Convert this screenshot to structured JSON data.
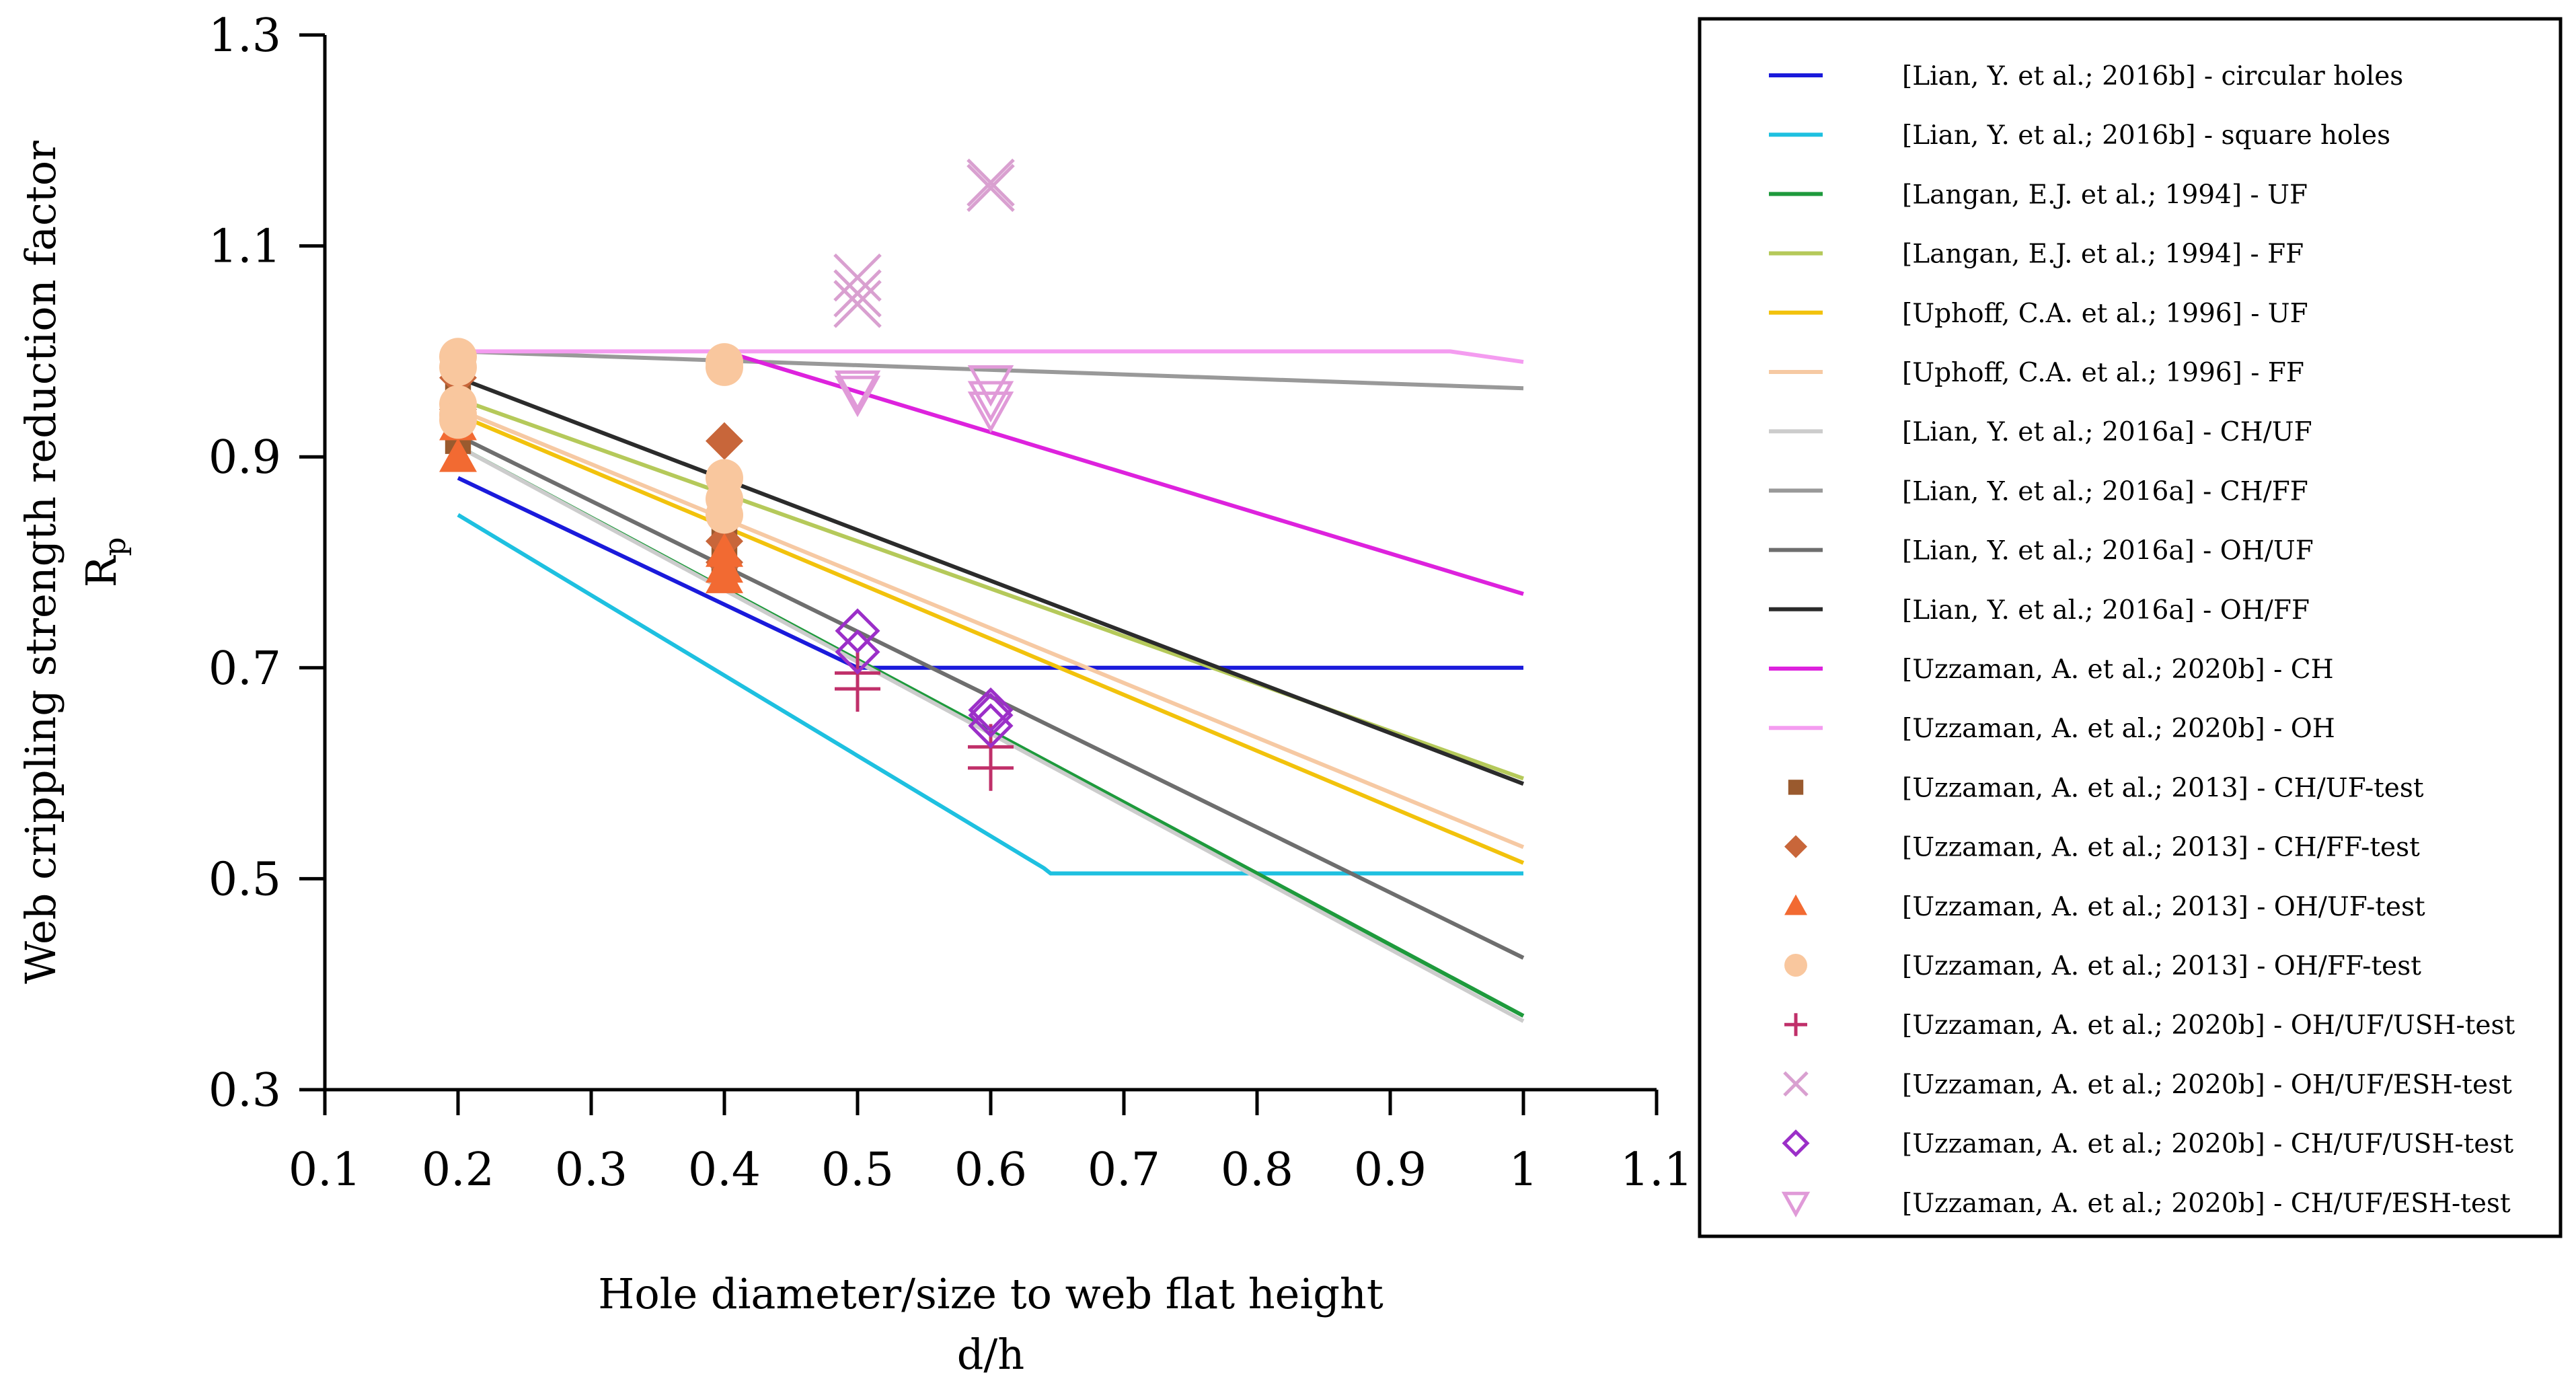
{
  "chart_data": {
    "type": "line",
    "xlabel_line1": "Hole diameter/size to web flat height",
    "xlabel_line2": "d/h",
    "ylabel_line1": "Web crippling strength reduction factor",
    "ylabel_line2_main": "R",
    "ylabel_line2_sub": "p",
    "xlim": [
      0.1,
      1.1
    ],
    "ylim": [
      0.3,
      1.3
    ],
    "xticks": [
      0.1,
      0.2,
      0.3,
      0.4,
      0.5,
      0.6,
      0.7,
      0.8,
      0.9,
      1.0,
      1.1
    ],
    "xtick_labels": [
      "0.1",
      "0.2",
      "0.3",
      "0.4",
      "0.5",
      "0.6",
      "0.7",
      "0.8",
      "0.9",
      "1",
      "1.1"
    ],
    "yticks": [
      0.3,
      0.5,
      0.7,
      0.9,
      1.1,
      1.3
    ],
    "ytick_labels": [
      "0.3",
      "0.5",
      "0.7",
      "0.9",
      "1.1",
      "1.3"
    ],
    "grid": false,
    "legend_position": "right",
    "lines": [
      {
        "name": "[Lian, Y. et al.; 2016b] - circular holes",
        "color": "#1a1adb",
        "x": [
          0.2,
          0.5,
          1.0
        ],
        "y": [
          0.88,
          0.7,
          0.7
        ]
      },
      {
        "name": "[Lian, Y. et al.; 2016b] - square holes",
        "color": "#1ec0e0",
        "x": [
          0.2,
          0.64,
          0.645,
          1.0
        ],
        "y": [
          0.845,
          0.51,
          0.505,
          0.505
        ]
      },
      {
        "name": "[Langan, E.J. et al.; 1994] - UF",
        "color": "#1e9a3c",
        "x": [
          0.2,
          1.0
        ],
        "y": [
          0.91,
          0.37
        ]
      },
      {
        "name": "[Langan, E.J. et al.; 1994] - FF",
        "color": "#b5c95a",
        "x": [
          0.2,
          1.0
        ],
        "y": [
          0.955,
          0.595
        ]
      },
      {
        "name": "[Uphoff, C.A. et al.; 1996] - UF",
        "color": "#f2c20c",
        "x": [
          0.2,
          1.0
        ],
        "y": [
          0.94,
          0.515
        ]
      },
      {
        "name": "[Uphoff, C.A. et al.; 1996] - FF",
        "color": "#f6c9a3",
        "x": [
          0.2,
          1.0
        ],
        "y": [
          0.945,
          0.53
        ]
      },
      {
        "name": "[Lian, Y. et al.; 2016a] - CH/UF",
        "color": "#cccccc",
        "x": [
          0.2,
          1.0
        ],
        "y": [
          0.91,
          0.365
        ]
      },
      {
        "name": "[Lian, Y. et al.; 2016a] - CH/FF",
        "color": "#999999",
        "x": [
          0.2,
          1.0
        ],
        "y": [
          1.0,
          0.965
        ]
      },
      {
        "name": "[Lian, Y. et al.; 2016a] - OH/UF",
        "color": "#6e6e6e",
        "x": [
          0.2,
          1.0
        ],
        "y": [
          0.92,
          0.425
        ]
      },
      {
        "name": "[Lian, Y. et al.; 2016a] - OH/FF",
        "color": "#2b2b2b",
        "x": [
          0.2,
          1.0
        ],
        "y": [
          0.975,
          0.59
        ]
      },
      {
        "name": "[Uzzaman, A. et al.; 2020b] - CH",
        "color": "#dd22dd",
        "x": [
          0.4,
          1.0
        ],
        "y": [
          1.0,
          0.77
        ]
      },
      {
        "name": "[Uzzaman, A. et al.; 2020b] - OH",
        "color": "#f49cf0",
        "x": [
          0.2,
          0.945,
          1.0
        ],
        "y": [
          1.0,
          1.0,
          0.99
        ]
      }
    ],
    "scatter": [
      {
        "name": "[Uzzaman, A. et al.; 2013] - CH/UF-test",
        "marker": "square",
        "color": "#9a5a2e",
        "x": [
          0.2,
          0.2,
          0.2,
          0.4,
          0.4,
          0.4
        ],
        "y": [
          0.965,
          0.935,
          0.915,
          0.83,
          0.805,
          0.79
        ]
      },
      {
        "name": "[Uzzaman, A. et al.; 2013] - CH/FF-test",
        "marker": "diamond",
        "color": "#c8663a",
        "x": [
          0.2,
          0.2,
          0.4,
          0.4,
          0.4
        ],
        "y": [
          0.975,
          0.945,
          0.915,
          0.82,
          0.8
        ]
      },
      {
        "name": "[Uzzaman, A. et al.; 2013] - OH/UF-test",
        "marker": "triangle",
        "color": "#f26a32",
        "x": [
          0.2,
          0.2,
          0.4,
          0.4,
          0.4
        ],
        "y": [
          0.93,
          0.9,
          0.81,
          0.795,
          0.785
        ]
      },
      {
        "name": "[Uzzaman, A. et al.; 2013] - OH/FF-test",
        "marker": "circle",
        "color": "#f9c79e",
        "x": [
          0.2,
          0.2,
          0.2,
          0.2,
          0.2,
          0.4,
          0.4,
          0.4,
          0.4,
          0.4
        ],
        "y": [
          0.995,
          0.985,
          0.95,
          0.94,
          0.935,
          0.99,
          0.985,
          0.88,
          0.86,
          0.845
        ]
      },
      {
        "name": "[Uzzaman, A. et al.; 2020b] - OH/UF/USH-test",
        "marker": "plus",
        "color": "#c0306a",
        "x": [
          0.5,
          0.5,
          0.6,
          0.6
        ],
        "y": [
          0.695,
          0.68,
          0.625,
          0.605
        ]
      },
      {
        "name": "[Uzzaman, A. et al.; 2020b] - OH/UF/ESH-test",
        "marker": "cross",
        "color": "#d9a0d0",
        "x": [
          0.5,
          0.5,
          0.5,
          0.6,
          0.6
        ],
        "y": [
          1.07,
          1.055,
          1.045,
          1.16,
          1.155
        ]
      },
      {
        "name": "[Uzzaman, A. et al.; 2020b] - CH/UF/USH-test",
        "marker": "diamond-open",
        "color": "#9b2fc8",
        "x": [
          0.5,
          0.5,
          0.6,
          0.6,
          0.6
        ],
        "y": [
          0.735,
          0.715,
          0.66,
          0.655,
          0.645
        ]
      },
      {
        "name": "[Uzzaman, A. et al.; 2020b] - CH/UF/ESH-test",
        "marker": "triangle-down-open",
        "color": "#e09ad8",
        "x": [
          0.5,
          0.5,
          0.6,
          0.6,
          0.6
        ],
        "y": [
          0.965,
          0.96,
          0.97,
          0.955,
          0.945
        ]
      }
    ]
  }
}
